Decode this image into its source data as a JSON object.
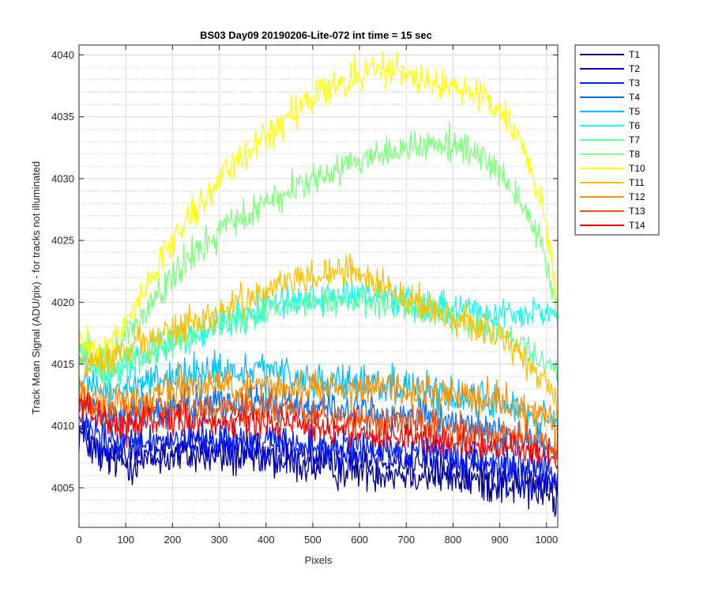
{
  "chart_data": {
    "type": "line",
    "title": "BS03 Day09 20190206-Lite-072 int time = 15 sec",
    "xlabel": "Pixels",
    "ylabel": "Track Mean Signal (ADU/pix) - for tracks not illuminated",
    "xlim": [
      0,
      1024
    ],
    "ylim": [
      4001.8,
      4040.8
    ],
    "x_ticks": [
      "0",
      "100",
      "200",
      "300",
      "400",
      "500",
      "600",
      "700",
      "800",
      "900",
      "1000"
    ],
    "y_ticks": [
      "4005",
      "4010",
      "4015",
      "4020",
      "4025",
      "4030",
      "4035",
      "4040"
    ],
    "grid": "major and minor",
    "legend_position": "outside-right",
    "x": [
      0,
      50,
      100,
      150,
      200,
      250,
      300,
      350,
      400,
      450,
      500,
      550,
      600,
      650,
      700,
      750,
      800,
      850,
      900,
      950,
      1000,
      1024
    ],
    "series": [
      {
        "name": "T1",
        "color": "#00008f",
        "values": [
          4009.5,
          4007.5,
          4007.0,
          4007.2,
          4007.5,
          4007.6,
          4007.5,
          4007.4,
          4007.2,
          4007.0,
          4006.8,
          4006.5,
          4006.5,
          4006.3,
          4006.2,
          4006.0,
          4005.8,
          4005.6,
          4005.3,
          4005.0,
          4004.6,
          4004.0
        ]
      },
      {
        "name": "T2",
        "color": "#0000d0",
        "values": [
          4009.8,
          4008.0,
          4007.8,
          4008.0,
          4008.2,
          4008.3,
          4008.2,
          4008.1,
          4008.0,
          4007.8,
          4007.6,
          4007.5,
          4007.4,
          4007.3,
          4007.2,
          4007.0,
          4006.8,
          4006.6,
          4006.3,
          4006.0,
          4005.5,
          4005.0
        ]
      },
      {
        "name": "T3",
        "color": "#0020ff",
        "values": [
          4010.5,
          4008.8,
          4008.6,
          4008.8,
          4009.0,
          4009.1,
          4009.0,
          4008.9,
          4008.8,
          4008.6,
          4008.4,
          4008.3,
          4008.2,
          4008.1,
          4008.0,
          4007.8,
          4007.6,
          4007.4,
          4007.1,
          4006.8,
          4006.4,
          4006.0
        ]
      },
      {
        "name": "T4",
        "color": "#0070ff",
        "values": [
          4012.5,
          4011.0,
          4010.8,
          4011.2,
          4011.6,
          4011.9,
          4012.0,
          4012.0,
          4011.9,
          4011.8,
          4011.6,
          4011.4,
          4011.2,
          4011.0,
          4010.8,
          4010.5,
          4010.2,
          4009.8,
          4009.4,
          4009.0,
          4008.5,
          4008.0
        ]
      },
      {
        "name": "T5",
        "color": "#00c0ff",
        "values": [
          4013.5,
          4012.5,
          4013.0,
          4013.5,
          4014.0,
          4014.2,
          4014.3,
          4014.3,
          4014.2,
          4014.0,
          4013.8,
          4013.6,
          4013.4,
          4013.2,
          4013.0,
          4012.8,
          4012.5,
          4012.2,
          4011.8,
          4011.2,
          4010.5,
          4009.8
        ]
      },
      {
        "name": "T6",
        "color": "#10ffef",
        "values": [
          4015.5,
          4014.0,
          4014.8,
          4015.8,
          4016.8,
          4017.6,
          4018.3,
          4019.0,
          4019.6,
          4020.1,
          4020.4,
          4020.6,
          4020.6,
          4020.4,
          4020.1,
          4019.8,
          4019.6,
          4019.4,
          4019.2,
          4019.0,
          4019.2,
          4019.5
        ]
      },
      {
        "name": "T7",
        "color": "#60ffa0",
        "values": [
          4016.0,
          4014.5,
          4015.2,
          4016.0,
          4016.8,
          4017.5,
          4018.2,
          4018.8,
          4019.3,
          4019.7,
          4020.0,
          4020.2,
          4020.2,
          4020.0,
          4019.7,
          4019.3,
          4018.8,
          4018.2,
          4017.5,
          4016.5,
          4015.3,
          4014.5
        ]
      },
      {
        "name": "T8",
        "color": "#80ff80",
        "values": [
          4016.5,
          4015.5,
          4017.0,
          4019.5,
          4022.0,
          4024.0,
          4025.5,
          4026.8,
          4028.0,
          4029.0,
          4030.0,
          4030.8,
          4031.5,
          4032.0,
          4032.5,
          4032.8,
          4032.7,
          4032.0,
          4030.5,
          4028.0,
          4023.5,
          4018.5
        ]
      },
      {
        "name": "T10",
        "color": "#ffff00",
        "values": [
          4017.0,
          4016.0,
          4018.5,
          4021.5,
          4025.0,
          4027.5,
          4029.8,
          4031.8,
          4033.5,
          4035.0,
          4036.5,
          4037.5,
          4038.5,
          4038.8,
          4038.5,
          4038.0,
          4037.5,
          4036.8,
          4035.5,
          4032.5,
          4026.5,
          4019.5
        ]
      },
      {
        "name": "T11",
        "color": "#ffc000",
        "values": [
          4015.0,
          4015.0,
          4016.0,
          4017.0,
          4017.8,
          4018.5,
          4019.2,
          4020.0,
          4020.8,
          4021.5,
          4022.0,
          4022.4,
          4022.3,
          4021.5,
          4020.5,
          4019.5,
          4018.8,
          4018.0,
          4017.0,
          4015.5,
          4013.5,
          4012.0
        ]
      },
      {
        "name": "T12",
        "color": "#ff9000",
        "values": [
          4013.0,
          4012.0,
          4012.2,
          4012.6,
          4013.0,
          4013.2,
          4013.3,
          4013.3,
          4013.2,
          4013.2,
          4013.1,
          4013.0,
          4012.9,
          4012.8,
          4012.7,
          4012.6,
          4012.5,
          4012.3,
          4012.0,
          4011.5,
          4010.8,
          4010.0
        ]
      },
      {
        "name": "T13",
        "color": "#ff5000",
        "values": [
          4012.5,
          4011.2,
          4011.0,
          4011.2,
          4011.4,
          4011.5,
          4011.5,
          4011.4,
          4011.3,
          4011.2,
          4011.0,
          4010.8,
          4010.6,
          4010.4,
          4010.2,
          4010.0,
          4009.8,
          4009.6,
          4009.3,
          4009.0,
          4008.6,
          4008.0
        ]
      },
      {
        "name": "T14",
        "color": "#ff0000",
        "values": [
          4012.0,
          4010.5,
          4010.0,
          4010.1,
          4010.3,
          4010.4,
          4010.4,
          4010.3,
          4010.2,
          4010.1,
          4009.9,
          4009.7,
          4009.5,
          4009.3,
          4009.1,
          4008.9,
          4008.7,
          4008.5,
          4008.2,
          4007.9,
          4007.5,
          4007.0
        ]
      }
    ]
  }
}
